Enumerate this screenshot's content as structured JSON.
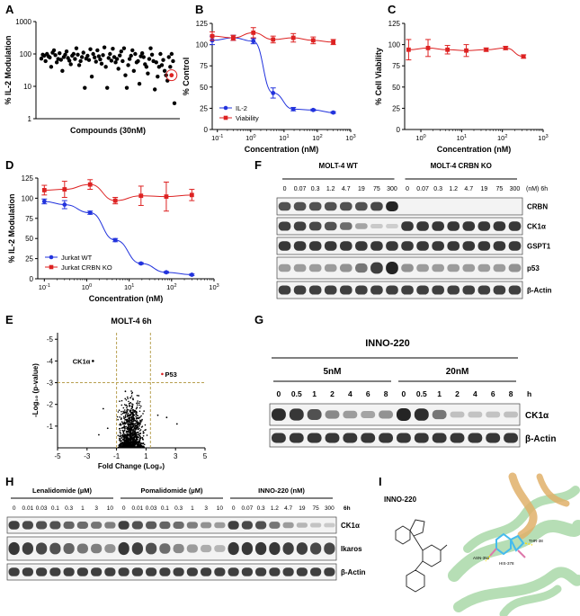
{
  "panels": {
    "A": "A",
    "B": "B",
    "C": "C",
    "D": "D",
    "E": "E",
    "F": "F",
    "G": "G",
    "H": "H",
    "I": "I"
  },
  "colors": {
    "blue": "#2233dd",
    "red": "#dd2222",
    "gold": "#b8a050",
    "blot": "#1a1a1a"
  },
  "chart_data": [
    {
      "id": "A",
      "type": "scatter",
      "xlabel": "Compounds (30nM)",
      "ylabel": "% IL-2 Modulation",
      "yscale": "log",
      "ylim": [
        1,
        1000
      ],
      "yticks": [
        "1",
        "10",
        "100",
        "1000"
      ],
      "values": [
        72,
        95,
        88,
        60,
        100,
        85,
        78,
        40,
        110,
        130,
        92,
        55,
        70,
        105,
        66,
        30,
        80,
        95,
        120,
        75,
        62,
        48,
        88,
        100,
        70,
        150,
        95,
        45,
        60,
        80,
        110,
        9,
        72,
        88,
        65,
        140,
        20,
        100,
        78,
        58,
        130,
        85,
        68,
        50,
        92,
        160,
        40,
        9,
        75,
        100,
        62,
        145,
        80,
        55,
        70,
        35,
        90,
        120,
        60,
        150,
        22,
        9,
        45,
        70,
        88,
        130,
        30,
        100,
        55,
        60,
        12,
        85,
        105,
        80,
        48,
        40,
        25,
        70,
        150,
        95,
        60,
        8,
        55,
        20,
        40,
        100,
        45,
        65,
        30,
        22,
        15,
        80,
        40,
        100,
        60,
        3
      ],
      "highlight_value": 22
    },
    {
      "id": "B",
      "type": "line",
      "xlabel": "Concentration (nM)",
      "ylabel": "% Control",
      "xscale": "log",
      "xlim": [
        0.07,
        1000
      ],
      "ylim": [
        0,
        125
      ],
      "xticks": [
        "10-1",
        "100",
        "101",
        "102",
        "103"
      ],
      "yticks": [
        "0",
        "25",
        "50",
        "75",
        "100",
        "125"
      ],
      "legend_position": "bottom-left",
      "series": [
        {
          "name": "IL-2",
          "color": "#2233dd",
          "x": [
            0.07,
            0.3,
            1.2,
            4.7,
            19,
            75,
            300
          ],
          "y": [
            105,
            108,
            104,
            43,
            24,
            23,
            20
          ],
          "err": [
            5,
            3,
            3,
            6,
            2,
            1,
            1
          ]
        },
        {
          "name": "Viability",
          "color": "#dd2222",
          "x": [
            0.07,
            0.3,
            1.2,
            4.7,
            19,
            75,
            300
          ],
          "y": [
            110,
            108,
            114,
            106,
            108,
            105,
            103
          ],
          "err": [
            5,
            3,
            6,
            4,
            5,
            4,
            3
          ]
        }
      ]
    },
    {
      "id": "C",
      "type": "line",
      "xlabel": "Concentration (nM)",
      "ylabel": "% Cell Viability",
      "xscale": "log",
      "xlim": [
        0.4,
        1000
      ],
      "ylim": [
        0,
        125
      ],
      "xticks": [
        "100",
        "101",
        "102",
        "103"
      ],
      "yticks": [
        "0",
        "25",
        "50",
        "75",
        "100",
        "125"
      ],
      "series": [
        {
          "name": "",
          "color": "#dd2222",
          "x": [
            0.5,
            1.5,
            4.5,
            13,
            40,
            120,
            330
          ],
          "y": [
            94,
            96,
            94,
            93,
            94,
            96,
            86
          ],
          "err": [
            12,
            10,
            5,
            7,
            2,
            2,
            2
          ]
        }
      ]
    },
    {
      "id": "D",
      "type": "line",
      "xlabel": "Concentration (nM)",
      "ylabel": "% IL-2 Modulation",
      "xscale": "log",
      "xlim": [
        0.07,
        1000
      ],
      "ylim": [
        0,
        125
      ],
      "xticks": [
        "10-1",
        "100",
        "101",
        "102",
        "103"
      ],
      "yticks": [
        "0",
        "25",
        "50",
        "75",
        "100",
        "125"
      ],
      "legend_position": "bottom-left",
      "series": [
        {
          "name": "Jurkat WT",
          "color": "#2233dd",
          "x": [
            0.1,
            0.3,
            1.2,
            4.7,
            19,
            75,
            300
          ],
          "y": [
            96,
            92,
            82,
            48,
            19,
            8,
            5
          ],
          "err": [
            3,
            5,
            2,
            2,
            1,
            1,
            1
          ]
        },
        {
          "name": "Jurkat CRBN KO",
          "color": "#dd2222",
          "x": [
            0.1,
            0.3,
            1.2,
            4.7,
            19,
            75,
            300
          ],
          "y": [
            110,
            111,
            117,
            97,
            103,
            102,
            104
          ],
          "err": [
            6,
            10,
            6,
            4,
            12,
            18,
            7
          ]
        }
      ]
    },
    {
      "id": "E",
      "type": "scatter",
      "title": "MOLT-4 6h",
      "xlabel": "Fold Change (Log2)",
      "ylabel": "-Log10 (p-value)",
      "xlim": [
        -5,
        5
      ],
      "ylim": [
        0,
        5.3
      ],
      "xticks": [
        "-5",
        "-3",
        "-1",
        "1",
        "3",
        "5"
      ],
      "yticks": [
        "-1",
        "-2",
        "-3",
        "-4",
        "-5"
      ],
      "threshold_y": 3,
      "threshold_x": [
        -1,
        1.3
      ],
      "annotations": [
        {
          "text": "CK1α",
          "x": -2.6,
          "y": 4.0
        },
        {
          "text": "P53",
          "x": 2.1,
          "y": 3.4
        }
      ]
    }
  ],
  "panelF": {
    "groups": [
      "MOLT-4 WT",
      "MOLT-4 CRBN KO"
    ],
    "lanes": [
      "0",
      "0.07",
      "0.3",
      "1.2",
      "4.7",
      "19",
      "75",
      "300"
    ],
    "unit": "(nM) 6h",
    "rows": [
      "CRBN",
      "CK1α",
      "GSPT1",
      "p53",
      "β-Actin"
    ]
  },
  "panelG": {
    "title": "INNO-220",
    "groups": [
      "5nM",
      "20nM"
    ],
    "lanes": [
      "0",
      "0.5",
      "1",
      "2",
      "4",
      "6",
      "8"
    ],
    "unit": "h",
    "rows": [
      "CK1α",
      "β-Actin"
    ]
  },
  "panelH": {
    "groups": [
      "Lenalidomide (µM)",
      "Pomalidomide (µM)",
      "INNO-220 (nM)"
    ],
    "lanes": [
      "0",
      "0.01",
      "0.03",
      "0.1",
      "0.3",
      "1",
      "3",
      "10",
      "0",
      "0.01",
      "0.03",
      "0.1",
      "0.3",
      "1",
      "3",
      "10",
      "0",
      "0.07",
      "0.3",
      "1.2",
      "4.7",
      "19",
      "75",
      "300"
    ],
    "unit": "6h",
    "rows": [
      "CK1α",
      "Ikaros",
      "β-Actin"
    ]
  },
  "panelI": {
    "compound": "INNO-220",
    "residues": [
      "THR-38",
      "ASN-351",
      "HIS-378"
    ]
  }
}
